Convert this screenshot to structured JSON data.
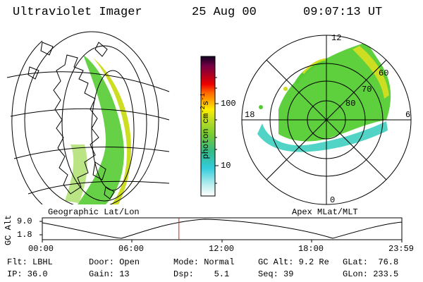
{
  "header": {
    "instrument": "Ultraviolet Imager",
    "date": "25 Aug 00",
    "time": "09:07:13 UT"
  },
  "colorbar": {
    "unit": "photon cm",
    "unit_exp": "-2",
    "unit_s": "s",
    "unit_s_exp": "-1",
    "tick_100": "100",
    "tick_10": "10"
  },
  "left_panel": {
    "caption": "Geographic Lat/Lon"
  },
  "right_panel": {
    "caption": "Apex MLat/MLT",
    "mlt_12": "12",
    "mlt_18": "18",
    "mlt_6": "6",
    "mlt_0": "0",
    "lat_60": "60",
    "lat_70": "70",
    "lat_80": "80"
  },
  "alt_plot": {
    "ylabel": "GC Alt",
    "ymax": "9.0",
    "ymin": "1.8",
    "x_ticks": [
      "00:00",
      "06:00",
      "12:00",
      "18:00",
      "23:59"
    ],
    "marker_time_fraction": 0.38
  },
  "info": {
    "filter": "Flt: LBHL",
    "ip": "IP: 36.0",
    "door": "Door: Open",
    "gain": "Gain: 13",
    "mode": "Mode: Normal",
    "dsp": "Dsp:    5.1",
    "gc_alt": "GC Alt: 9.2 Re",
    "seq": "Seq: 39",
    "glat": "GLat:  76.8",
    "glon": "GLon: 233.5"
  },
  "colors": {
    "aurora_green": "#55cc33",
    "aurora_yellow": "#ccdd22",
    "aurora_cyan": "#33ccbb",
    "marker_red": "#cc2222"
  }
}
